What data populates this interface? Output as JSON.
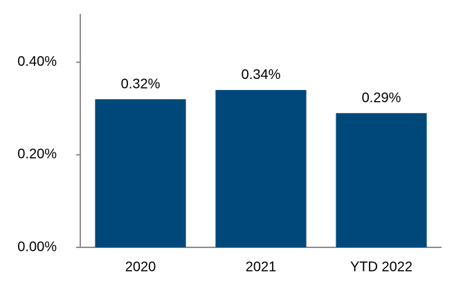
{
  "chart_data": {
    "type": "bar",
    "categories": [
      "2020",
      "2021",
      "YTD 2022"
    ],
    "values": [
      0.32,
      0.34,
      0.29
    ],
    "value_labels": [
      "0.32%",
      "0.34%",
      "0.29%"
    ],
    "color": "#004879",
    "ylim": [
      0,
      0.5
    ],
    "yticks": [
      {
        "value": 0,
        "label": "0.00%"
      },
      {
        "value": 0.2,
        "label": "0.20%"
      },
      {
        "value": 0.4,
        "label": "0.40%"
      }
    ],
    "grid": false
  }
}
